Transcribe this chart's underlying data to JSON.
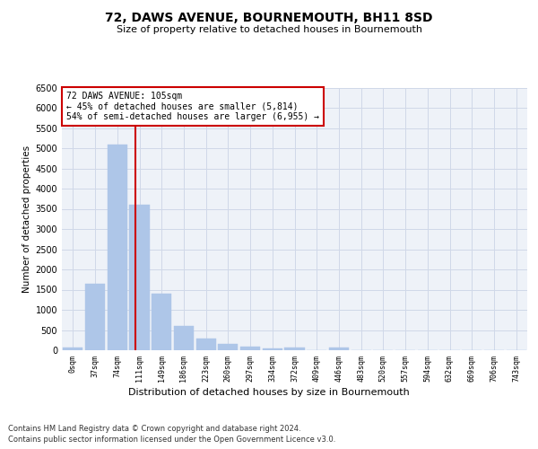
{
  "title": "72, DAWS AVENUE, BOURNEMOUTH, BH11 8SD",
  "subtitle": "Size of property relative to detached houses in Bournemouth",
  "xlabel": "Distribution of detached houses by size in Bournemouth",
  "ylabel": "Number of detached properties",
  "footer_line1": "Contains HM Land Registry data © Crown copyright and database right 2024.",
  "footer_line2": "Contains public sector information licensed under the Open Government Licence v3.0.",
  "bar_labels": [
    "0sqm",
    "37sqm",
    "74sqm",
    "111sqm",
    "149sqm",
    "186sqm",
    "223sqm",
    "260sqm",
    "297sqm",
    "334sqm",
    "372sqm",
    "409sqm",
    "446sqm",
    "483sqm",
    "520sqm",
    "557sqm",
    "594sqm",
    "632sqm",
    "669sqm",
    "706sqm",
    "743sqm"
  ],
  "bar_values": [
    70,
    1640,
    5090,
    3600,
    1400,
    610,
    300,
    155,
    90,
    55,
    65,
    0,
    65,
    0,
    0,
    0,
    0,
    0,
    0,
    0,
    0
  ],
  "bar_color": "#aec6e8",
  "bar_edge_color": "#aec6e8",
  "grid_color": "#d0d8e8",
  "background_color": "#eef2f8",
  "vline_color": "#cc0000",
  "annotation_text": "72 DAWS AVENUE: 105sqm\n← 45% of detached houses are smaller (5,814)\n54% of semi-detached houses are larger (6,955) →",
  "annotation_box_color": "#ffffff",
  "annotation_box_edge_color": "#cc0000",
  "ylim": [
    0,
    6500
  ],
  "yticks": [
    0,
    500,
    1000,
    1500,
    2000,
    2500,
    3000,
    3500,
    4000,
    4500,
    5000,
    5500,
    6000,
    6500
  ]
}
